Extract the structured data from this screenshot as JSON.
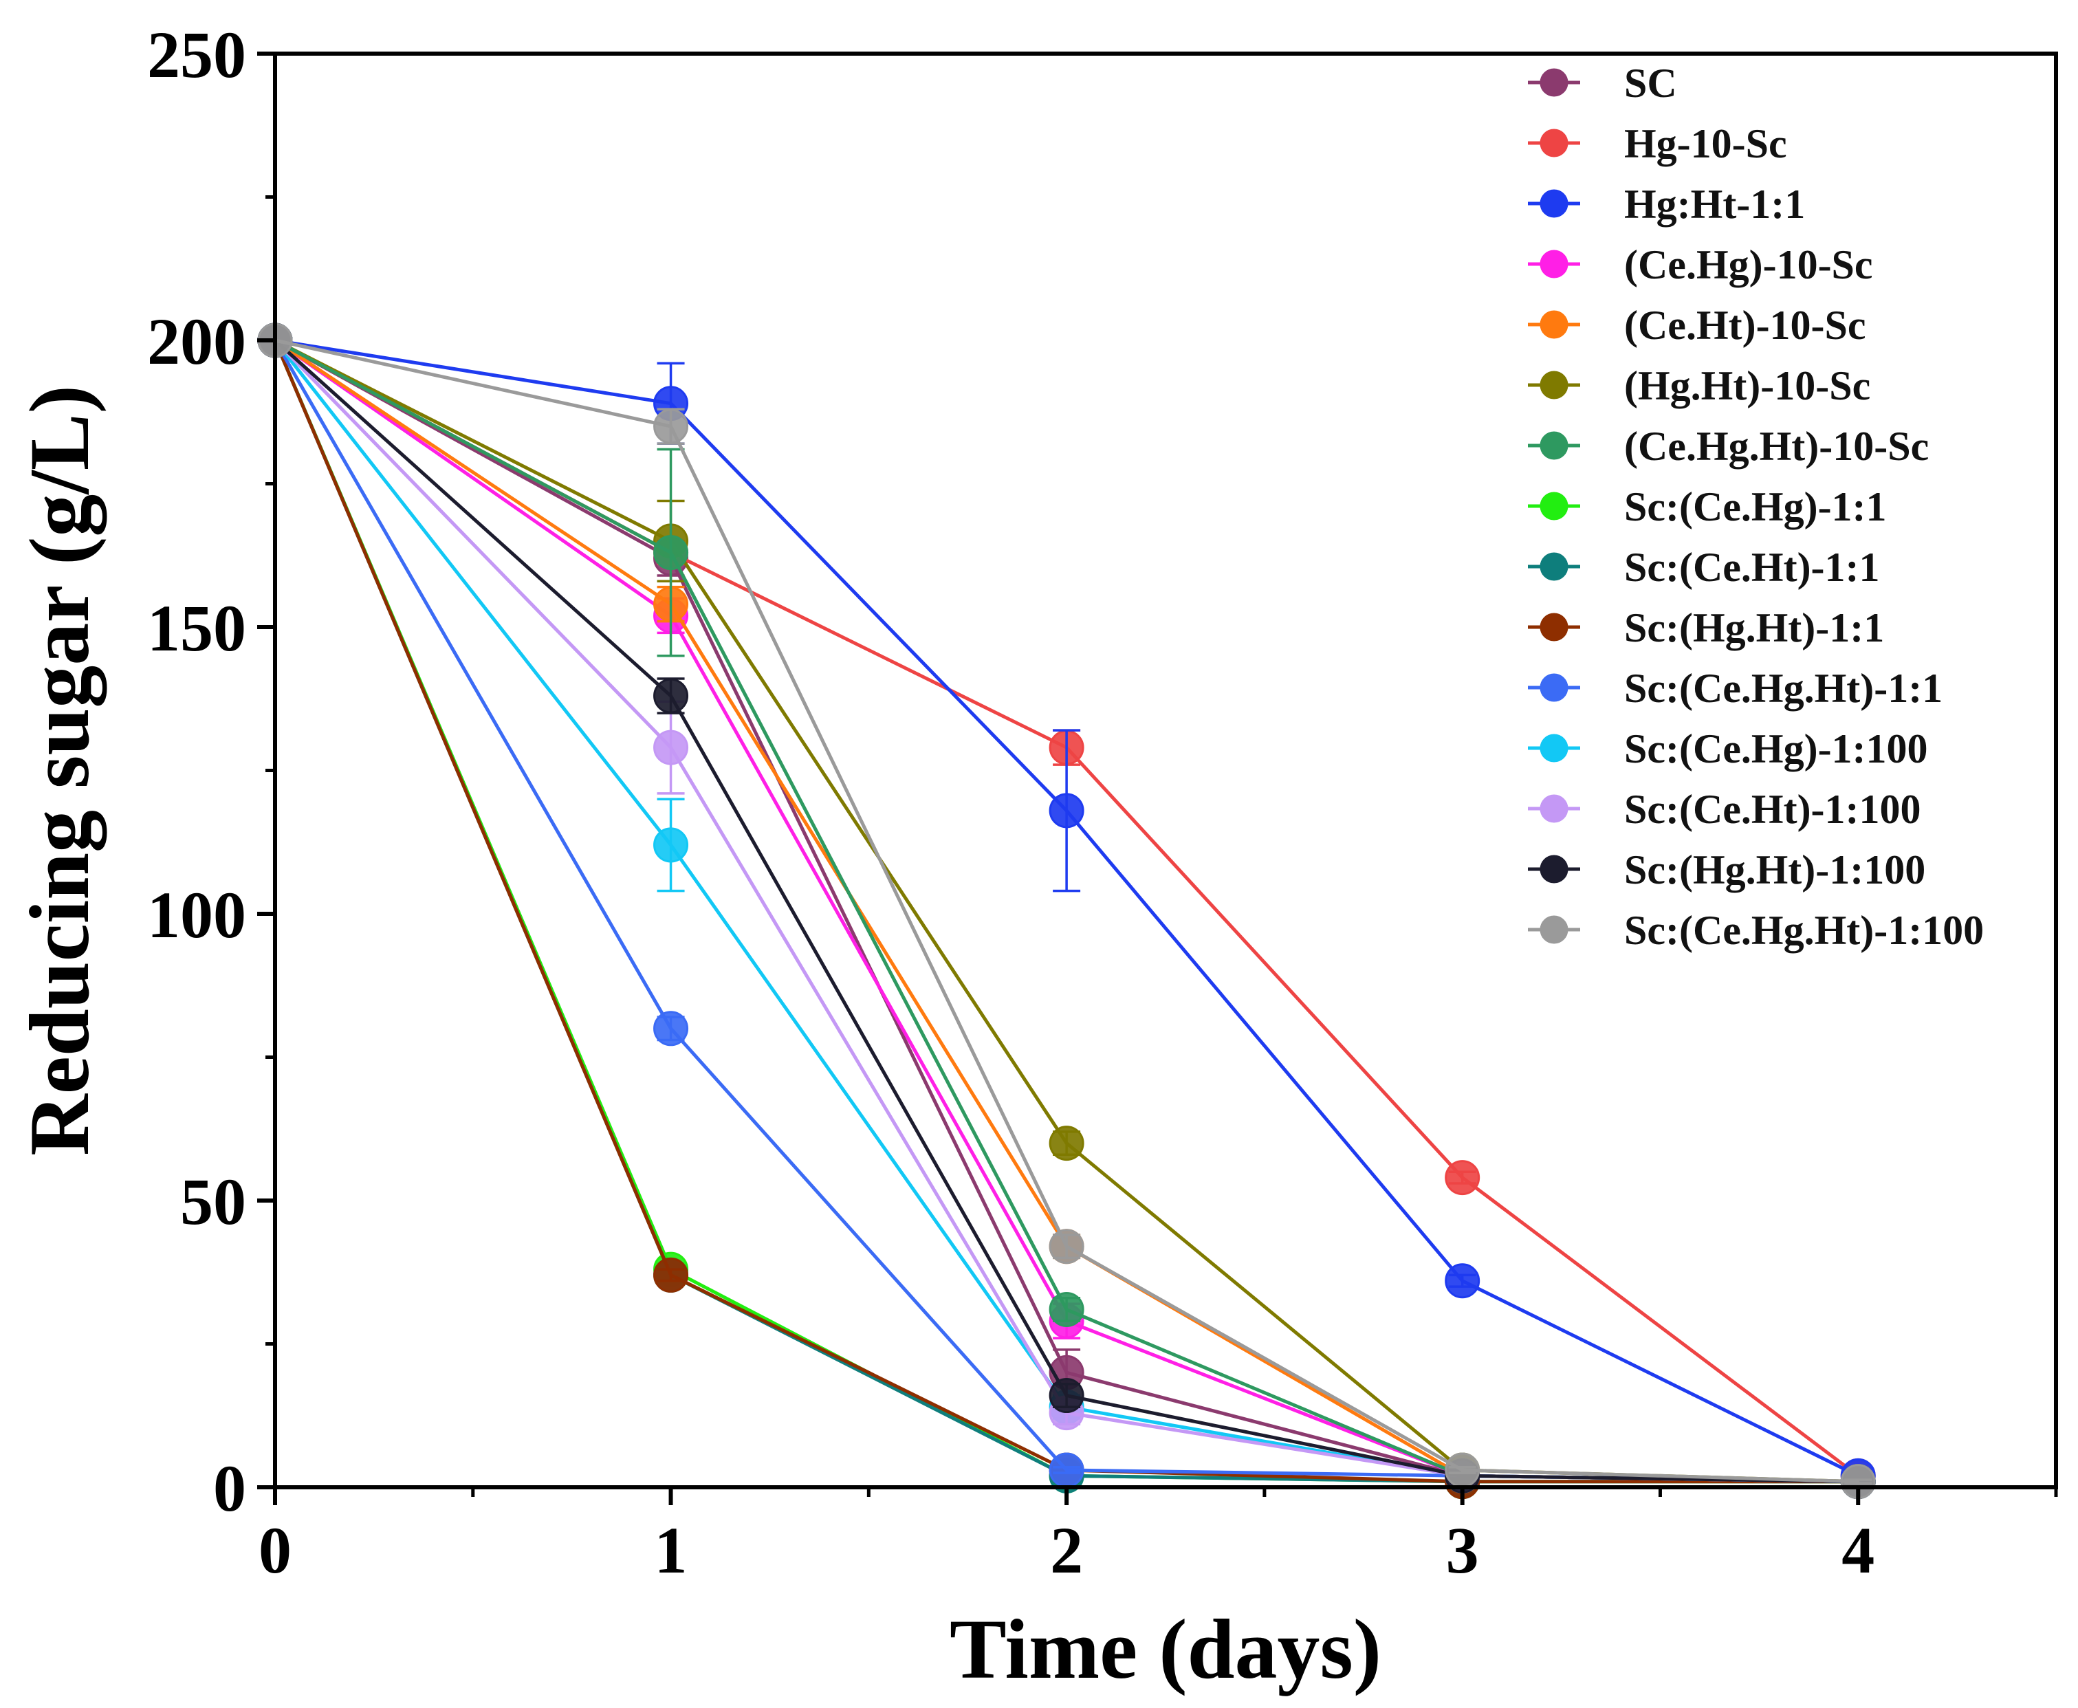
{
  "chart_data": {
    "type": "line",
    "xlabel": "Time (days)",
    "ylabel": "Reducing sugar (g/L)",
    "xlim": [
      0,
      4.5
    ],
    "ylim": [
      0,
      250
    ],
    "xticks": [
      0,
      1,
      2,
      3,
      4
    ],
    "xticks_minor": [
      0.5,
      1.5,
      2.5,
      3.5,
      4.5
    ],
    "yticks": [
      0,
      50,
      100,
      150,
      200,
      250
    ],
    "yticks_minor": [
      25,
      75,
      125,
      175,
      225
    ],
    "legend_position": "top-right",
    "grid": false,
    "x": [
      0,
      1,
      2,
      3,
      4
    ],
    "series": [
      {
        "name": "SC",
        "color": "#8B3A6E",
        "values": [
          200,
          162,
          20,
          2,
          1
        ],
        "errors": [
          0,
          3,
          4,
          0.5,
          0.3
        ]
      },
      {
        "name": "Hg-10-Sc",
        "color": "#EE4444",
        "values": [
          200,
          163,
          129,
          54,
          2
        ],
        "errors": [
          0,
          2,
          3,
          1,
          0.3
        ]
      },
      {
        "name": "Hg:Ht-1:1",
        "color": "#1E3BF0",
        "values": [
          200,
          189,
          118,
          36,
          2
        ],
        "errors": [
          0,
          7,
          14,
          1,
          0.3
        ]
      },
      {
        "name": "(Ce.Hg)-10-Sc",
        "color": "#FF1FE6",
        "values": [
          200,
          152,
          29,
          2,
          1
        ],
        "errors": [
          0,
          3,
          3,
          0.5,
          0.3
        ]
      },
      {
        "name": "(Ce.Ht)-10-Sc",
        "color": "#FF7A0F",
        "values": [
          200,
          154,
          42,
          2,
          1
        ],
        "errors": [
          0,
          3,
          2,
          0.5,
          0.3
        ]
      },
      {
        "name": "(Hg.Ht)-10-Sc",
        "color": "#7F7A00",
        "values": [
          200,
          165,
          60,
          3,
          1
        ],
        "errors": [
          0,
          7,
          2,
          0.5,
          0.3
        ]
      },
      {
        "name": "(Ce.Hg.Ht)-10-Sc",
        "color": "#2E9960",
        "values": [
          200,
          163,
          31,
          2,
          1
        ],
        "errors": [
          0,
          18,
          2,
          0.5,
          0.3
        ]
      },
      {
        "name": "Sc:(Ce.Hg)-1:1",
        "color": "#22EE11",
        "values": [
          200,
          38,
          2,
          1,
          1
        ],
        "errors": [
          0,
          1,
          0.5,
          0.3,
          0.3
        ]
      },
      {
        "name": "Sc:(Ce.Ht)-1:1",
        "color": "#0E7E7C",
        "values": [
          200,
          37,
          2,
          1,
          1
        ],
        "errors": [
          0,
          1,
          0.5,
          0.3,
          0.3
        ]
      },
      {
        "name": "Sc:(Hg.Ht)-1:1",
        "color": "#8E2E00",
        "values": [
          200,
          37,
          3,
          1,
          1
        ],
        "errors": [
          0,
          1,
          0.5,
          0.3,
          0.3
        ]
      },
      {
        "name": "Sc:(Ce.Hg.Ht)-1:1",
        "color": "#3B6BF5",
        "values": [
          200,
          80,
          3,
          2,
          1
        ],
        "errors": [
          0,
          2,
          0.5,
          0.3,
          0.3
        ]
      },
      {
        "name": "Sc:(Ce.Hg)-1:100",
        "color": "#12C8F5",
        "values": [
          200,
          112,
          14,
          2,
          1
        ],
        "errors": [
          0,
          8,
          2,
          0.5,
          0.3
        ]
      },
      {
        "name": "Sc:(Ce.Ht)-1:100",
        "color": "#C498F5",
        "values": [
          200,
          129,
          13,
          2,
          1
        ],
        "errors": [
          0,
          8,
          2,
          0.5,
          0.3
        ]
      },
      {
        "name": "Sc:(Hg.Ht)-1:100",
        "color": "#1C1C2E",
        "values": [
          200,
          138,
          16,
          2,
          1
        ],
        "errors": [
          0,
          3,
          2,
          0.5,
          0.3
        ]
      },
      {
        "name": "Sc:(Ce.Hg.Ht)-1:100",
        "color": "#9A9A9A",
        "values": [
          200,
          185,
          42,
          3,
          1
        ],
        "errors": [
          0,
          3,
          2,
          0.5,
          0.3
        ]
      }
    ]
  }
}
